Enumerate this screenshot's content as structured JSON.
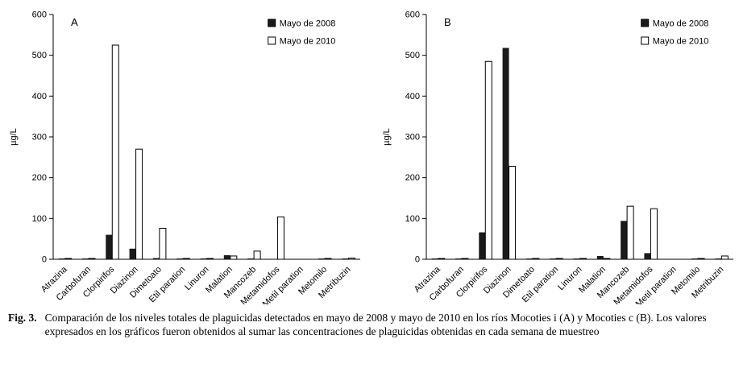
{
  "figure": {
    "caption_label": "Fig. 3.",
    "caption_text": "Comparación de los niveles totales de plaguicidas detectados en mayo de 2008 y mayo de 2010 en los ríos Mocoties i (A) y Mocoties c (B). Los valores expresados en los gráficos fueron obtenidos al sumar las concentraciones de plaguicidas obtenidas en cada semana de muestreo"
  },
  "chart_data": [
    {
      "type": "bar",
      "panel_label": "A",
      "title": "",
      "xlabel": "",
      "ylabel": "µg/L",
      "ylim": [
        0,
        600
      ],
      "yticks": [
        0,
        100,
        200,
        300,
        400,
        500,
        600
      ],
      "grid": false,
      "legend_position": "top-right",
      "bar_colors": {
        "Mayo de 2008": "#1a1a1a",
        "Mayo de 2010": "#ffffff"
      },
      "categories": [
        "Atrazina",
        "Carbofuran",
        "Clorpirifos",
        "Diazinon",
        "Dimetoato",
        "Etil paration",
        "Linuron",
        "Malation",
        "Mancozeb",
        "Metamidofos",
        "Metil paration",
        "Metomilo",
        "Metribuzin"
      ],
      "series": [
        {
          "name": "Mayo de 2008",
          "values": [
            2,
            2,
            60,
            26,
            3,
            2,
            2,
            10,
            2,
            0,
            0,
            2,
            2
          ]
        },
        {
          "name": "Mayo de 2010",
          "values": [
            2,
            2,
            525,
            270,
            76,
            2,
            2,
            8,
            20,
            104,
            0,
            2,
            3
          ]
        }
      ]
    },
    {
      "type": "bar",
      "panel_label": "B",
      "title": "",
      "xlabel": "",
      "ylabel": "µg/L",
      "ylim": [
        0,
        600
      ],
      "yticks": [
        0,
        100,
        200,
        300,
        400,
        500,
        600
      ],
      "grid": false,
      "legend_position": "top-right",
      "bar_colors": {
        "Mayo de 2008": "#1a1a1a",
        "Mayo de 2010": "#ffffff"
      },
      "categories": [
        "Atrazina",
        "Carbofuran",
        "Clorpirifos",
        "Diazinon",
        "Dimetoato",
        "Etil paration",
        "Linuron",
        "Malation",
        "Mancozeb",
        "Metamidofos",
        "Metil paration",
        "Metomilo",
        "Metribuzin"
      ],
      "series": [
        {
          "name": "Mayo de 2008",
          "values": [
            2,
            2,
            66,
            518,
            2,
            2,
            2,
            8,
            94,
            15,
            0,
            2,
            2
          ]
        },
        {
          "name": "Mayo de 2010",
          "values": [
            2,
            2,
            485,
            228,
            2,
            2,
            2,
            2,
            130,
            124,
            0,
            2,
            8
          ]
        }
      ]
    }
  ]
}
